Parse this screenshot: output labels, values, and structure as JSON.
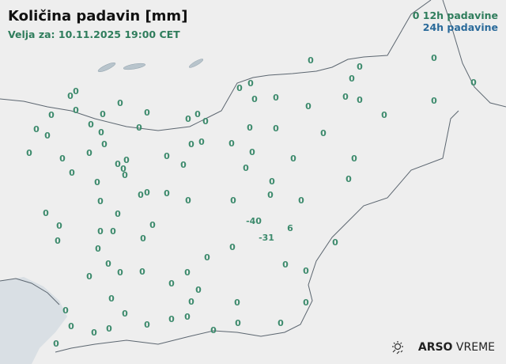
{
  "header": {
    "title": "Količina padavin [mm]",
    "valid_for": "Velja za: 10.11.2025 19:00 CET"
  },
  "legend": {
    "symbol": "0",
    "item_12h": "12h padavine",
    "item_24h": "24h padavine",
    "color_12h": "#2f7d5c",
    "color_24h": "#2a6a9a"
  },
  "logo": {
    "brand_bold": "ARSO",
    "brand_light": "VREME",
    "icon": "sun-rain-icon"
  },
  "stations": [
    "0",
    "0",
    "0",
    "0",
    "0",
    "0",
    "0",
    "0",
    "0",
    "0",
    "0",
    "0",
    "0",
    "0",
    "0",
    "0",
    "0",
    "0",
    "0",
    "0",
    "0",
    "0",
    "0",
    "0",
    "0",
    "0",
    "0",
    "0",
    "0",
    "0",
    "0",
    "0",
    "0",
    "0",
    "0",
    "0",
    "0",
    "0",
    "0",
    "0",
    "0",
    "0",
    "0",
    "0",
    "0",
    "0",
    "0",
    "0",
    "0",
    "0",
    "0",
    "0",
    "0",
    "0",
    "0",
    "0",
    "0",
    "0",
    "0",
    "0",
    "0",
    "0",
    "0",
    "0",
    "0",
    "0",
    "0",
    "0",
    "0",
    "0",
    "0",
    "0",
    "0",
    "0",
    "0",
    "0",
    "0",
    "0",
    "0",
    "0",
    "0",
    "0",
    "0",
    "0",
    "0",
    "0",
    "0",
    "0",
    "0",
    "0",
    "0",
    "0",
    "0",
    "0",
    "0",
    "0",
    "0",
    "0",
    "-40",
    "6",
    "-31"
  ]
}
